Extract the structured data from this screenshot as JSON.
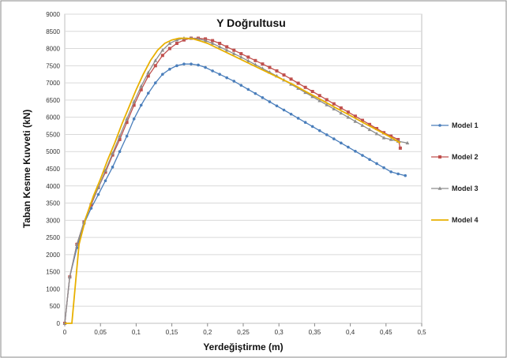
{
  "chart_data": {
    "type": "line",
    "title": "Y Doğrultusu",
    "xlabel": "Yerdeğiştirme (m)",
    "ylabel": "Taban Kesme Kuvveti (kN)",
    "xlim": [
      0,
      0.5
    ],
    "ylim": [
      0,
      9000
    ],
    "xticks": [
      "0",
      "0,05",
      "0,1",
      "0,15",
      "0,2",
      "0,25",
      "0,3",
      "0,35",
      "0,4",
      "0,45",
      "0,5"
    ],
    "yticks": [
      "0",
      "500",
      "1000",
      "1500",
      "2000",
      "2500",
      "3000",
      "3500",
      "4000",
      "4500",
      "5000",
      "5500",
      "6000",
      "6500",
      "7000",
      "7500",
      "8000",
      "8500",
      "9000"
    ],
    "grid": "horizontal",
    "legend_position": "right",
    "series": [
      {
        "name": "Model 1",
        "color": "#4a7ebb",
        "marker": "circle",
        "x": [
          0,
          0.007,
          0.017,
          0.027,
          0.037,
          0.047,
          0.057,
          0.067,
          0.077,
          0.087,
          0.097,
          0.107,
          0.117,
          0.127,
          0.137,
          0.147,
          0.157,
          0.167,
          0.177,
          0.187,
          0.197,
          0.207,
          0.217,
          0.227,
          0.237,
          0.247,
          0.257,
          0.267,
          0.277,
          0.287,
          0.297,
          0.307,
          0.317,
          0.327,
          0.337,
          0.347,
          0.357,
          0.367,
          0.377,
          0.387,
          0.397,
          0.407,
          0.417,
          0.427,
          0.437,
          0.447,
          0.457,
          0.467,
          0.477
        ],
        "y": [
          0,
          1350,
          2200,
          2900,
          3350,
          3750,
          4150,
          4550,
          5000,
          5450,
          5950,
          6350,
          6700,
          7000,
          7250,
          7400,
          7500,
          7550,
          7550,
          7520,
          7450,
          7350,
          7250,
          7150,
          7050,
          6930,
          6810,
          6690,
          6570,
          6450,
          6330,
          6210,
          6090,
          5970,
          5850,
          5730,
          5610,
          5490,
          5370,
          5250,
          5130,
          5010,
          4890,
          4770,
          4650,
          4530,
          4410,
          4350,
          4300
        ]
      },
      {
        "name": "Model 2",
        "color": "#c0504d",
        "marker": "square",
        "x": [
          0,
          0.007,
          0.017,
          0.027,
          0.037,
          0.047,
          0.057,
          0.067,
          0.077,
          0.087,
          0.097,
          0.107,
          0.117,
          0.127,
          0.137,
          0.147,
          0.157,
          0.167,
          0.177,
          0.187,
          0.197,
          0.207,
          0.217,
          0.227,
          0.237,
          0.247,
          0.257,
          0.267,
          0.277,
          0.287,
          0.297,
          0.307,
          0.317,
          0.327,
          0.337,
          0.347,
          0.357,
          0.367,
          0.377,
          0.387,
          0.397,
          0.407,
          0.417,
          0.427,
          0.437,
          0.447,
          0.457,
          0.467,
          0.47
        ],
        "y": [
          0,
          1350,
          2300,
          2950,
          3450,
          3950,
          4400,
          4900,
          5350,
          5850,
          6350,
          6800,
          7200,
          7500,
          7800,
          8000,
          8150,
          8250,
          8300,
          8300,
          8280,
          8230,
          8150,
          8050,
          7950,
          7850,
          7750,
          7650,
          7550,
          7450,
          7350,
          7230,
          7110,
          6990,
          6870,
          6750,
          6630,
          6510,
          6390,
          6270,
          6150,
          6030,
          5910,
          5790,
          5670,
          5550,
          5450,
          5350,
          5100
        ]
      },
      {
        "name": "Model 3",
        "color": "#8d8d8d",
        "marker": "triangle",
        "x": [
          0,
          0.007,
          0.017,
          0.027,
          0.037,
          0.047,
          0.057,
          0.067,
          0.077,
          0.087,
          0.097,
          0.107,
          0.117,
          0.127,
          0.137,
          0.147,
          0.157,
          0.167,
          0.177,
          0.187,
          0.197,
          0.207,
          0.217,
          0.227,
          0.237,
          0.247,
          0.257,
          0.267,
          0.277,
          0.287,
          0.297,
          0.307,
          0.317,
          0.327,
          0.337,
          0.347,
          0.357,
          0.367,
          0.377,
          0.387,
          0.397,
          0.407,
          0.417,
          0.427,
          0.437,
          0.447,
          0.457,
          0.467,
          0.48
        ],
        "y": [
          0,
          1350,
          2300,
          2950,
          3500,
          3950,
          4450,
          4950,
          5450,
          5950,
          6450,
          6900,
          7300,
          7650,
          7950,
          8150,
          8250,
          8300,
          8300,
          8280,
          8230,
          8150,
          8050,
          7950,
          7850,
          7750,
          7640,
          7530,
          7420,
          7310,
          7200,
          7080,
          6960,
          6840,
          6720,
          6600,
          6480,
          6360,
          6240,
          6120,
          6000,
          5880,
          5760,
          5640,
          5520,
          5400,
          5350,
          5300,
          5250
        ]
      },
      {
        "name": "Model 4",
        "color": "#e8b000",
        "marker": "none",
        "x": [
          0,
          0.01,
          0.02,
          0.03,
          0.04,
          0.05,
          0.06,
          0.07,
          0.08,
          0.09,
          0.1,
          0.11,
          0.12,
          0.13,
          0.14,
          0.15,
          0.16,
          0.17,
          0.18,
          0.19,
          0.2,
          0.22,
          0.24,
          0.26,
          0.28,
          0.3,
          0.32,
          0.34,
          0.36,
          0.38,
          0.4,
          0.42,
          0.44,
          0.46,
          0.47
        ],
        "y": [
          0,
          0,
          2300,
          3100,
          3700,
          4200,
          4750,
          5250,
          5800,
          6300,
          6800,
          7250,
          7650,
          7950,
          8150,
          8250,
          8300,
          8300,
          8280,
          8220,
          8150,
          7950,
          7750,
          7550,
          7350,
          7150,
          6950,
          6720,
          6500,
          6270,
          6050,
          5820,
          5600,
          5380,
          5250
        ]
      }
    ]
  }
}
